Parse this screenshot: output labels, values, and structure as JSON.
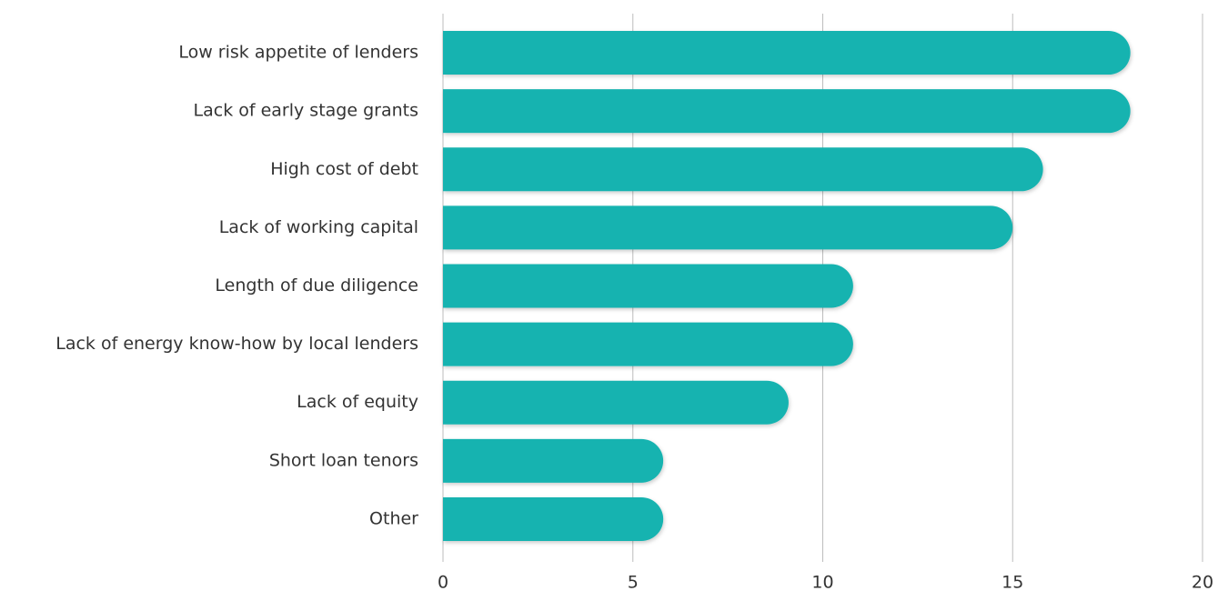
{
  "chart_data": {
    "type": "bar",
    "orientation": "horizontal",
    "categories": [
      "Low risk appetite of lenders",
      "Lack of early stage grants",
      "High cost of debt",
      "Lack of working capital",
      "Length of due diligence",
      "Lack of energy know-how by local lenders",
      "Lack of equity",
      "Short loan tenors",
      "Other"
    ],
    "values": [
      18.1,
      18.1,
      15.8,
      15,
      10.8,
      10.8,
      9.1,
      5.8,
      5.8
    ],
    "color": "#17b3b0",
    "xlim": [
      0,
      20
    ],
    "xticks": [
      0,
      5,
      10,
      15,
      20
    ],
    "grid": true
  }
}
